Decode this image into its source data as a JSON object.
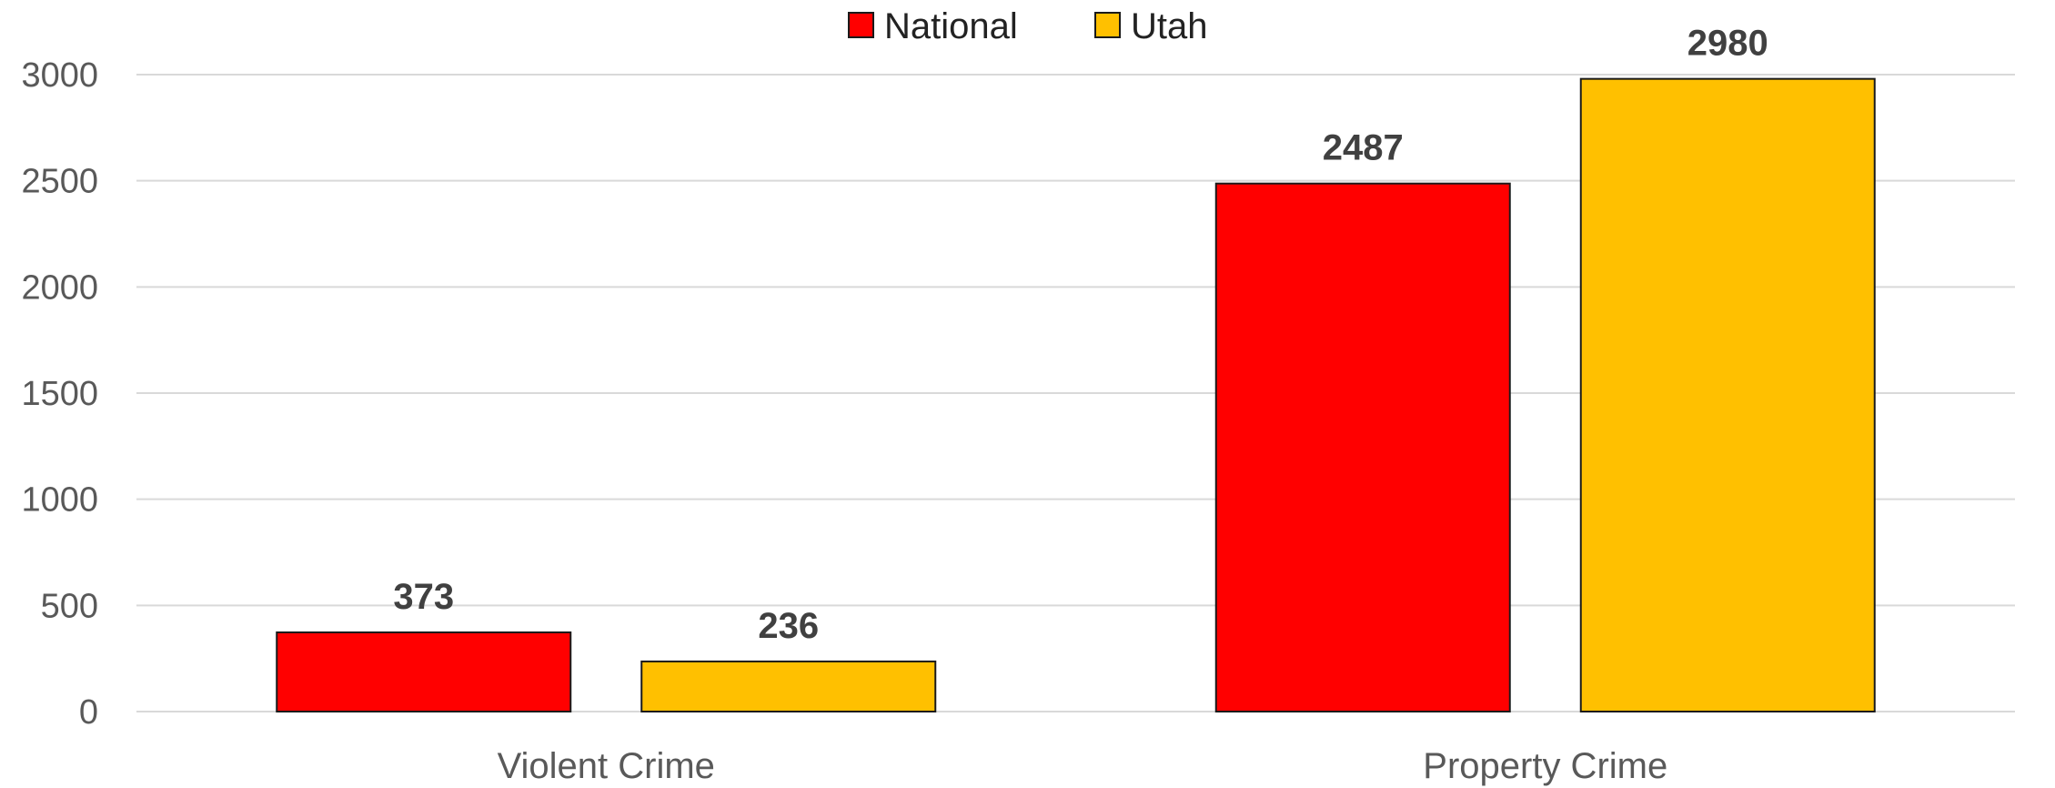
{
  "chart_data": {
    "type": "bar",
    "title": "",
    "xlabel": "",
    "ylabel": "",
    "categories": [
      "Violent Crime",
      "Property Crime"
    ],
    "series": [
      {
        "name": "National",
        "color": "#ff0000",
        "values": [
          373,
          2487
        ]
      },
      {
        "name": "Utah",
        "color": "#ffc000",
        "values": [
          236,
          2980
        ]
      }
    ],
    "ylim": [
      0,
      3000
    ],
    "yticks": [
      0,
      500,
      1000,
      1500,
      2000,
      2500,
      3000
    ],
    "ytick_labels": [
      "0",
      "500",
      "1000",
      "1500",
      "2000",
      "2500",
      "3000"
    ],
    "grid": true,
    "legend_position": "top-center",
    "data_labels": [
      "373",
      "2487",
      "236",
      "2980"
    ]
  }
}
